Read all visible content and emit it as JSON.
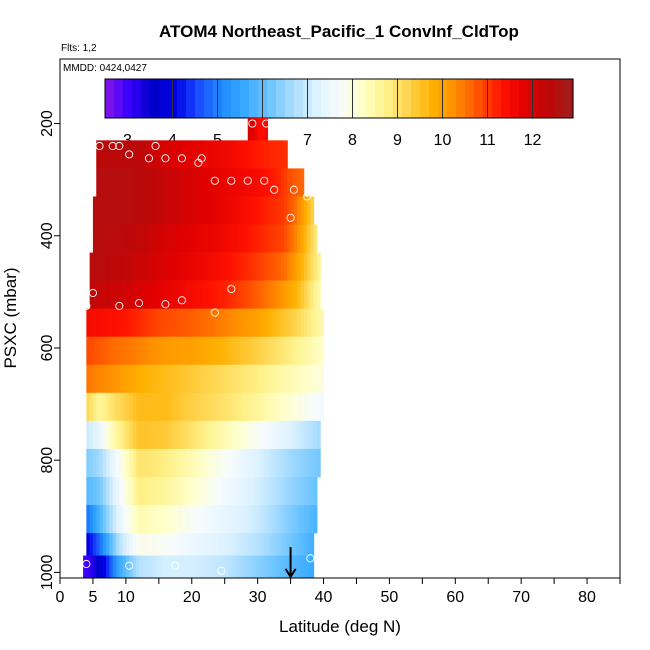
{
  "header": {
    "title": "ATOM4 Northeast_Pacific_1 ConvInf_CldTop",
    "flights_note": "Flts: 1,2",
    "dates_note": "MMDD: 0424,0427"
  },
  "chart_data": {
    "type": "heatmap",
    "title": "ATOM4 Northeast_Pacific_1 ConvInf_CldTop",
    "xlabel": "Latitude (deg N)",
    "ylabel": "PSXC (mbar)",
    "xlim": [
      0,
      85
    ],
    "ylim": [
      1010,
      85
    ],
    "y_inverted": true,
    "x_ticks": [
      0,
      5,
      10,
      20,
      30,
      40,
      50,
      60,
      70,
      80
    ],
    "x_tick_labels": [
      "0",
      "5",
      "10",
      "20",
      "30",
      "40",
      "50",
      "60",
      "70",
      "80"
    ],
    "x_minor_ticks": [
      15,
      25,
      35,
      45,
      55,
      65,
      75,
      85
    ],
    "y_ticks": [
      200,
      400,
      600,
      800,
      1000
    ],
    "y_tick_labels": [
      "200",
      "400",
      "600",
      "800",
      "1000"
    ],
    "colorbar": {
      "min": 2.5,
      "max": 12.9,
      "ticks": [
        3,
        4,
        5,
        6,
        7,
        8,
        9,
        10,
        11,
        12
      ],
      "tick_labels": [
        "3",
        "4",
        "5",
        "6",
        "7",
        "8",
        "9",
        "10",
        "11",
        "12"
      ],
      "colors": [
        "#8b16e8",
        "#3a00ff",
        "#0000c8",
        "#0000e6",
        "#1a4dff",
        "#1f8cff",
        "#3aaaff",
        "#6cc4ff",
        "#a8dcff",
        "#dcf2ff",
        "#f6fbff",
        "#ffffc8",
        "#fff28c",
        "#ffd24a",
        "#ffb000",
        "#ff8c00",
        "#ff5000",
        "#ff1000",
        "#e00000",
        "#bc0808",
        "#a02020"
      ]
    },
    "bands": [
      {
        "p_top": 190,
        "p_bottom": 230,
        "lat_min": 28.5,
        "lat_max": 31.5,
        "values": [
          [
            28.5,
            12.0
          ],
          [
            29.5,
            11.8
          ],
          [
            30.5,
            11.3
          ],
          [
            31.5,
            11.6
          ]
        ]
      },
      {
        "p_top": 230,
        "p_bottom": 280,
        "lat_min": 5.5,
        "lat_max": 34.5,
        "values": [
          [
            5.5,
            12.4
          ],
          [
            12,
            12.4
          ],
          [
            16,
            12.0
          ],
          [
            20,
            11.8
          ],
          [
            25,
            11.6
          ],
          [
            28,
            11.4
          ],
          [
            31,
            11.2
          ],
          [
            34.5,
            11.1
          ]
        ]
      },
      {
        "p_top": 280,
        "p_bottom": 330,
        "lat_min": 5.5,
        "lat_max": 37,
        "values": [
          [
            5.5,
            12.5
          ],
          [
            10,
            12.5
          ],
          [
            15,
            12.3
          ],
          [
            20,
            12.0
          ],
          [
            25,
            11.7
          ],
          [
            30,
            11.5
          ],
          [
            33,
            11.2
          ],
          [
            35,
            10.8
          ],
          [
            37,
            10.6
          ]
        ]
      },
      {
        "p_top": 330,
        "p_bottom": 380,
        "lat_min": 5,
        "lat_max": 38.5,
        "values": [
          [
            5,
            12.5
          ],
          [
            10,
            12.5
          ],
          [
            15,
            12.3
          ],
          [
            20,
            12.0
          ],
          [
            25,
            11.7
          ],
          [
            30,
            11.3
          ],
          [
            34,
            11.0
          ],
          [
            36,
            10.5
          ],
          [
            38.5,
            9.2
          ]
        ]
      },
      {
        "p_top": 380,
        "p_bottom": 430,
        "lat_min": 5,
        "lat_max": 39,
        "values": [
          [
            5,
            12.5
          ],
          [
            10,
            12.4
          ],
          [
            15,
            12.1
          ],
          [
            20,
            11.8
          ],
          [
            25,
            11.6
          ],
          [
            30,
            11.2
          ],
          [
            34,
            10.9
          ],
          [
            36,
            10.3
          ],
          [
            39,
            8.8
          ]
        ]
      },
      {
        "p_top": 430,
        "p_bottom": 480,
        "lat_min": 4.5,
        "lat_max": 39.5,
        "values": [
          [
            4.5,
            12.5
          ],
          [
            10,
            12.3
          ],
          [
            15,
            12.0
          ],
          [
            20,
            11.7
          ],
          [
            25,
            11.4
          ],
          [
            30,
            11.0
          ],
          [
            34,
            10.6
          ],
          [
            36,
            10.0
          ],
          [
            39.5,
            8.6
          ]
        ]
      },
      {
        "p_top": 480,
        "p_bottom": 530,
        "lat_min": 4.5,
        "lat_max": 39.5,
        "values": [
          [
            4.5,
            12.3
          ],
          [
            10,
            12.1
          ],
          [
            15,
            11.8
          ],
          [
            20,
            11.5
          ],
          [
            25,
            11.2
          ],
          [
            30,
            10.7
          ],
          [
            33,
            10.3
          ],
          [
            36,
            9.7
          ],
          [
            39.5,
            8.4
          ]
        ]
      },
      {
        "p_top": 530,
        "p_bottom": 580,
        "lat_min": 4,
        "lat_max": 40,
        "values": [
          [
            4,
            11.5
          ],
          [
            10,
            11.3
          ],
          [
            15,
            10.9
          ],
          [
            20,
            10.7
          ],
          [
            25,
            10.4
          ],
          [
            30,
            10.0
          ],
          [
            33,
            9.6
          ],
          [
            36,
            9.2
          ],
          [
            40,
            8.4
          ]
        ]
      },
      {
        "p_top": 580,
        "p_bottom": 630,
        "lat_min": 4,
        "lat_max": 40,
        "values": [
          [
            4,
            10.9
          ],
          [
            8,
            10.6
          ],
          [
            12,
            10.4
          ],
          [
            16,
            10.1
          ],
          [
            20,
            10.0
          ],
          [
            25,
            9.7
          ],
          [
            30,
            9.3
          ],
          [
            35,
            8.8
          ],
          [
            40,
            8.2
          ]
        ]
      },
      {
        "p_top": 630,
        "p_bottom": 680,
        "lat_min": 4,
        "lat_max": 40,
        "values": [
          [
            4,
            10.5
          ],
          [
            8,
            10.2
          ],
          [
            12,
            9.8
          ],
          [
            16,
            9.6
          ],
          [
            20,
            9.4
          ],
          [
            25,
            9.1
          ],
          [
            30,
            8.8
          ],
          [
            35,
            8.4
          ],
          [
            40,
            8.0
          ]
        ]
      },
      {
        "p_top": 680,
        "p_bottom": 730,
        "lat_min": 4,
        "lat_max": 40,
        "values": [
          [
            4,
            9.2
          ],
          [
            6,
            8.6
          ],
          [
            8,
            9.0
          ],
          [
            12,
            9.6
          ],
          [
            16,
            9.6
          ],
          [
            20,
            9.3
          ],
          [
            25,
            9.0
          ],
          [
            30,
            8.6
          ],
          [
            35,
            8.1
          ],
          [
            40,
            7.6
          ]
        ]
      },
      {
        "p_top": 730,
        "p_bottom": 780,
        "lat_min": 4,
        "lat_max": 39.5,
        "values": [
          [
            4,
            7.0
          ],
          [
            6,
            7.4
          ],
          [
            8,
            8.4
          ],
          [
            12,
            9.5
          ],
          [
            16,
            9.4
          ],
          [
            20,
            9.0
          ],
          [
            25,
            8.4
          ],
          [
            30,
            7.8
          ],
          [
            35,
            7.2
          ],
          [
            39.5,
            6.6
          ]
        ]
      },
      {
        "p_top": 780,
        "p_bottom": 830,
        "lat_min": 4,
        "lat_max": 39.5,
        "values": [
          [
            4,
            6.3
          ],
          [
            6,
            6.6
          ],
          [
            9,
            7.8
          ],
          [
            12,
            9.0
          ],
          [
            16,
            8.8
          ],
          [
            20,
            8.4
          ],
          [
            25,
            7.8
          ],
          [
            30,
            7.2
          ],
          [
            35,
            6.6
          ],
          [
            39.5,
            6.2
          ]
        ]
      },
      {
        "p_top": 830,
        "p_bottom": 880,
        "lat_min": 4,
        "lat_max": 39,
        "values": [
          [
            4,
            5.9
          ],
          [
            6,
            6.2
          ],
          [
            9,
            7.6
          ],
          [
            12,
            8.8
          ],
          [
            16,
            8.6
          ],
          [
            20,
            8.2
          ],
          [
            25,
            7.6
          ],
          [
            30,
            7.1
          ],
          [
            35,
            6.5
          ],
          [
            39,
            6.1
          ]
        ]
      },
      {
        "p_top": 880,
        "p_bottom": 930,
        "lat_min": 4,
        "lat_max": 39,
        "values": [
          [
            4,
            4.8
          ],
          [
            6,
            5.8
          ],
          [
            9,
            7.4
          ],
          [
            12,
            8.4
          ],
          [
            16,
            8.2
          ],
          [
            20,
            7.8
          ],
          [
            25,
            7.4
          ],
          [
            30,
            7.0
          ],
          [
            35,
            6.3
          ],
          [
            39,
            5.8
          ]
        ]
      },
      {
        "p_top": 930,
        "p_bottom": 970,
        "lat_min": 4,
        "lat_max": 38.5,
        "values": [
          [
            4,
            3.9
          ],
          [
            6,
            4.8
          ],
          [
            9,
            6.8
          ],
          [
            12,
            7.9
          ],
          [
            16,
            7.8
          ],
          [
            20,
            7.5
          ],
          [
            25,
            7.2
          ],
          [
            30,
            6.8
          ],
          [
            35,
            6.2
          ],
          [
            38.5,
            5.7
          ]
        ]
      },
      {
        "p_top": 970,
        "p_bottom": 1010,
        "lat_min": 3.5,
        "lat_max": 38.5,
        "values": [
          [
            3.5,
            2.9
          ],
          [
            5,
            3.2
          ],
          [
            7,
            4.2
          ],
          [
            9,
            5.6
          ],
          [
            12,
            6.8
          ],
          [
            16,
            7.1
          ],
          [
            20,
            7.1
          ],
          [
            25,
            6.9
          ],
          [
            30,
            6.4
          ],
          [
            35,
            5.9
          ],
          [
            38.5,
            5.6
          ]
        ]
      }
    ],
    "points": [
      [
        29.2,
        200
      ],
      [
        31.3,
        200
      ],
      [
        6,
        240
      ],
      [
        8,
        240
      ],
      [
        9,
        240
      ],
      [
        14.5,
        240
      ],
      [
        10.5,
        255
      ],
      [
        13.5,
        262
      ],
      [
        16,
        262
      ],
      [
        18.5,
        262
      ],
      [
        21,
        270
      ],
      [
        21.5,
        262
      ],
      [
        23.5,
        302
      ],
      [
        26,
        302
      ],
      [
        28.5,
        302
      ],
      [
        31,
        302
      ],
      [
        32.5,
        318
      ],
      [
        35.5,
        318
      ],
      [
        37.5,
        330
      ],
      [
        35,
        368
      ],
      [
        5,
        502
      ],
      [
        26,
        495
      ],
      [
        18.5,
        515
      ],
      [
        12,
        520
      ],
      [
        9,
        525
      ],
      [
        16,
        522
      ],
      [
        23.5,
        537
      ],
      [
        4,
        525
      ],
      [
        4,
        985
      ],
      [
        10.5,
        988
      ],
      [
        17.5,
        988
      ],
      [
        24.5,
        997
      ],
      [
        38,
        975
      ]
    ],
    "arrow": {
      "lat": 35,
      "p_from": 955,
      "p_to": 1008
    }
  }
}
